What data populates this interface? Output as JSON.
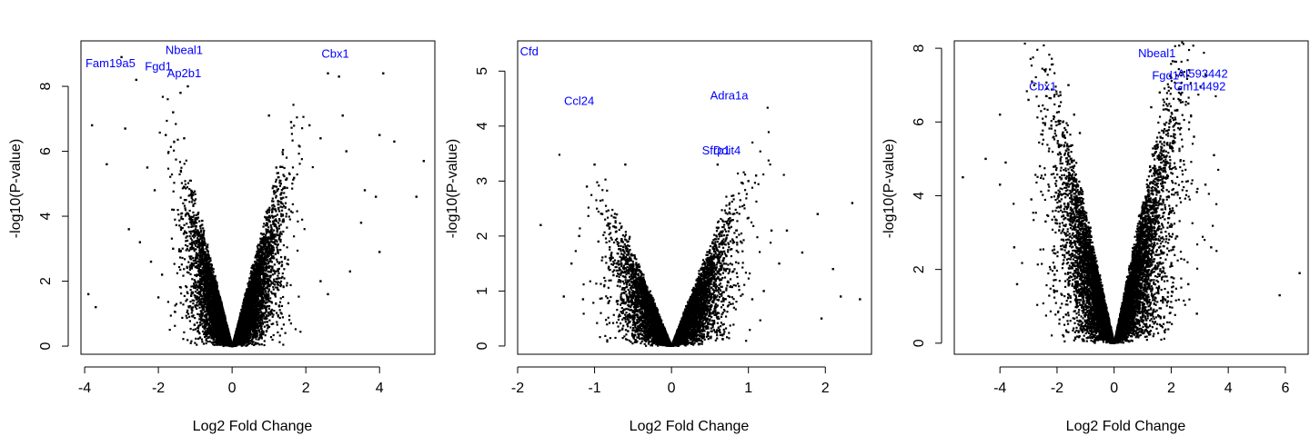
{
  "figure": {
    "point_color": "#000000",
    "label_color": "#0000ff"
  },
  "chart_data": [
    {
      "type": "scatter",
      "title": "",
      "xlabel": "Log2 Fold Change",
      "ylabel": "-log10(P-value)",
      "xlim": [
        -4.1,
        5.5
      ],
      "ylim": [
        -0.25,
        9.4
      ],
      "xticks": [
        -4,
        -2,
        0,
        2,
        4
      ],
      "yticks": [
        0,
        2,
        4,
        6,
        8
      ],
      "highlighted_genes": [
        {
          "label": "Fam19a5",
          "x": -3.3,
          "y": 8.7
        },
        {
          "label": "Fgd1",
          "x": -2.0,
          "y": 8.6
        },
        {
          "label": "Nbeal1",
          "x": -1.3,
          "y": 9.1
        },
        {
          "label": "Ap2b1",
          "x": -1.3,
          "y": 8.4
        },
        {
          "label": "Cbx1",
          "x": 2.8,
          "y": 9.0
        }
      ],
      "points": [
        [
          -3.9,
          1.6
        ],
        [
          -3.7,
          1.2
        ],
        [
          -3.8,
          6.8
        ],
        [
          -3.4,
          5.6
        ],
        [
          -3.0,
          8.9
        ],
        [
          -2.6,
          8.2
        ],
        [
          -2.9,
          6.7
        ],
        [
          -2.8,
          3.6
        ],
        [
          -2.5,
          3.2
        ],
        [
          -2.3,
          5.5
        ],
        [
          -2.1,
          4.8
        ],
        [
          -2.2,
          2.6
        ],
        [
          -2.0,
          1.5
        ],
        [
          -1.8,
          6.5
        ],
        [
          -1.6,
          7.2
        ],
        [
          -1.4,
          7.8
        ],
        [
          -1.2,
          8.0
        ],
        [
          -1.3,
          6.4
        ],
        [
          -1.6,
          3.0
        ],
        [
          -1.9,
          2.2
        ],
        [
          1.0,
          7.1
        ],
        [
          1.2,
          5.5
        ],
        [
          1.6,
          6.9
        ],
        [
          2.1,
          6.8
        ],
        [
          2.4,
          6.4
        ],
        [
          2.6,
          8.4
        ],
        [
          2.9,
          8.3
        ],
        [
          3.0,
          7.1
        ],
        [
          3.1,
          6.0
        ],
        [
          2.4,
          2.0
        ],
        [
          2.6,
          1.6
        ],
        [
          3.2,
          2.3
        ],
        [
          3.5,
          3.8
        ],
        [
          3.6,
          4.8
        ],
        [
          3.9,
          4.6
        ],
        [
          4.0,
          6.5
        ],
        [
          4.1,
          8.4
        ],
        [
          4.0,
          2.9
        ],
        [
          4.4,
          6.3
        ],
        [
          5.0,
          4.6
        ],
        [
          5.2,
          5.7
        ]
      ],
      "cloud": {
        "left_spread": 1.15,
        "right_spread": 1.35,
        "left_slope": 4.2,
        "right_slope": 4.0,
        "count": 9000
      }
    },
    {
      "type": "scatter",
      "title": "",
      "xlabel": "Log2 Fold Change",
      "ylabel": "-log10(P-value)",
      "xlim": [
        -2.0,
        2.6
      ],
      "ylim": [
        -0.15,
        5.55
      ],
      "xticks": [
        -2,
        -1,
        0,
        1,
        2
      ],
      "yticks": [
        0,
        1,
        2,
        3,
        4,
        5
      ],
      "highlighted_genes": [
        {
          "label": "Cfd",
          "x": -1.85,
          "y": 5.35
        },
        {
          "label": "Ccl24",
          "x": -1.2,
          "y": 4.45
        },
        {
          "label": "Adra1a",
          "x": 0.75,
          "y": 4.55
        },
        {
          "label": "Sfrp1",
          "x": 0.58,
          "y": 3.55
        },
        {
          "label": "Ddit4",
          "x": 0.72,
          "y": 3.55
        }
      ],
      "points": [
        [
          -1.7,
          2.2
        ],
        [
          -1.4,
          0.9
        ],
        [
          -1.3,
          1.5
        ],
        [
          -1.2,
          2.0
        ],
        [
          -1.1,
          2.9
        ],
        [
          -1.0,
          3.3
        ],
        [
          -0.9,
          2.4
        ],
        [
          -0.8,
          1.6
        ],
        [
          -0.6,
          3.3
        ],
        [
          -1.15,
          0.85
        ],
        [
          -0.95,
          1.9
        ],
        [
          0.6,
          3.3
        ],
        [
          0.8,
          2.4
        ],
        [
          0.9,
          1.9
        ],
        [
          1.0,
          3.0
        ],
        [
          1.1,
          3.1
        ],
        [
          1.2,
          1.0
        ],
        [
          1.3,
          2.1
        ],
        [
          1.4,
          1.5
        ],
        [
          1.5,
          2.1
        ],
        [
          1.7,
          1.7
        ],
        [
          1.9,
          2.4
        ],
        [
          1.95,
          0.5
        ],
        [
          2.1,
          1.4
        ],
        [
          2.2,
          0.9
        ],
        [
          2.35,
          2.6
        ],
        [
          2.45,
          0.85
        ],
        [
          1.05,
          0.85
        ]
      ],
      "cloud": {
        "left_spread": 0.75,
        "right_spread": 0.8,
        "left_slope": 3.2,
        "right_slope": 3.4,
        "count": 7000
      }
    },
    {
      "type": "scatter",
      "title": "",
      "xlabel": "Log2 Fold Change",
      "ylabel": "-log10(P-value)",
      "xlim": [
        -5.6,
        6.8
      ],
      "ylim": [
        -0.3,
        8.2
      ],
      "xticks": [
        -4,
        -2,
        0,
        2,
        4,
        6
      ],
      "yticks": [
        0,
        2,
        4,
        6,
        8
      ],
      "highlighted_genes": [
        {
          "label": "Nbeal1",
          "x": 1.5,
          "y": 7.85
        },
        {
          "label": "Cbx1",
          "x": -2.5,
          "y": 6.95
        },
        {
          "label": "Fgd1",
          "x": 1.8,
          "y": 7.25
        },
        {
          "label": "AI593442",
          "x": 3.1,
          "y": 7.3
        },
        {
          "label": "Gm14492",
          "x": 3.0,
          "y": 6.95
        }
      ],
      "points": [
        [
          -5.3,
          4.5
        ],
        [
          -4.5,
          5.0
        ],
        [
          -4.0,
          6.2
        ],
        [
          -4.0,
          4.3
        ],
        [
          -3.8,
          4.9
        ],
        [
          -3.5,
          2.6
        ],
        [
          -3.4,
          1.6
        ],
        [
          -3.0,
          6.6
        ],
        [
          -2.8,
          7.0
        ],
        [
          -2.9,
          3.9
        ],
        [
          -2.6,
          4.8
        ],
        [
          -2.4,
          3.3
        ],
        [
          -2.2,
          5.9
        ],
        [
          -1.9,
          4.5
        ],
        [
          -1.6,
          7.0
        ],
        [
          -1.4,
          6.2
        ],
        [
          -1.2,
          5.7
        ],
        [
          1.3,
          6.4
        ],
        [
          1.6,
          6.8
        ],
        [
          2.0,
          7.2
        ],
        [
          2.3,
          5.8
        ],
        [
          2.6,
          6.5
        ],
        [
          2.8,
          5.6
        ],
        [
          2.9,
          4.1
        ],
        [
          3.2,
          4.3
        ],
        [
          3.5,
          5.1
        ],
        [
          2.6,
          1.6
        ],
        [
          2.9,
          0.8
        ],
        [
          3.4,
          2.6
        ],
        [
          5.8,
          1.3
        ],
        [
          6.5,
          1.9
        ]
      ],
      "cloud": {
        "left_spread": 2.1,
        "right_spread": 2.2,
        "left_slope": 3.3,
        "right_slope": 3.5,
        "count": 9000
      }
    }
  ]
}
